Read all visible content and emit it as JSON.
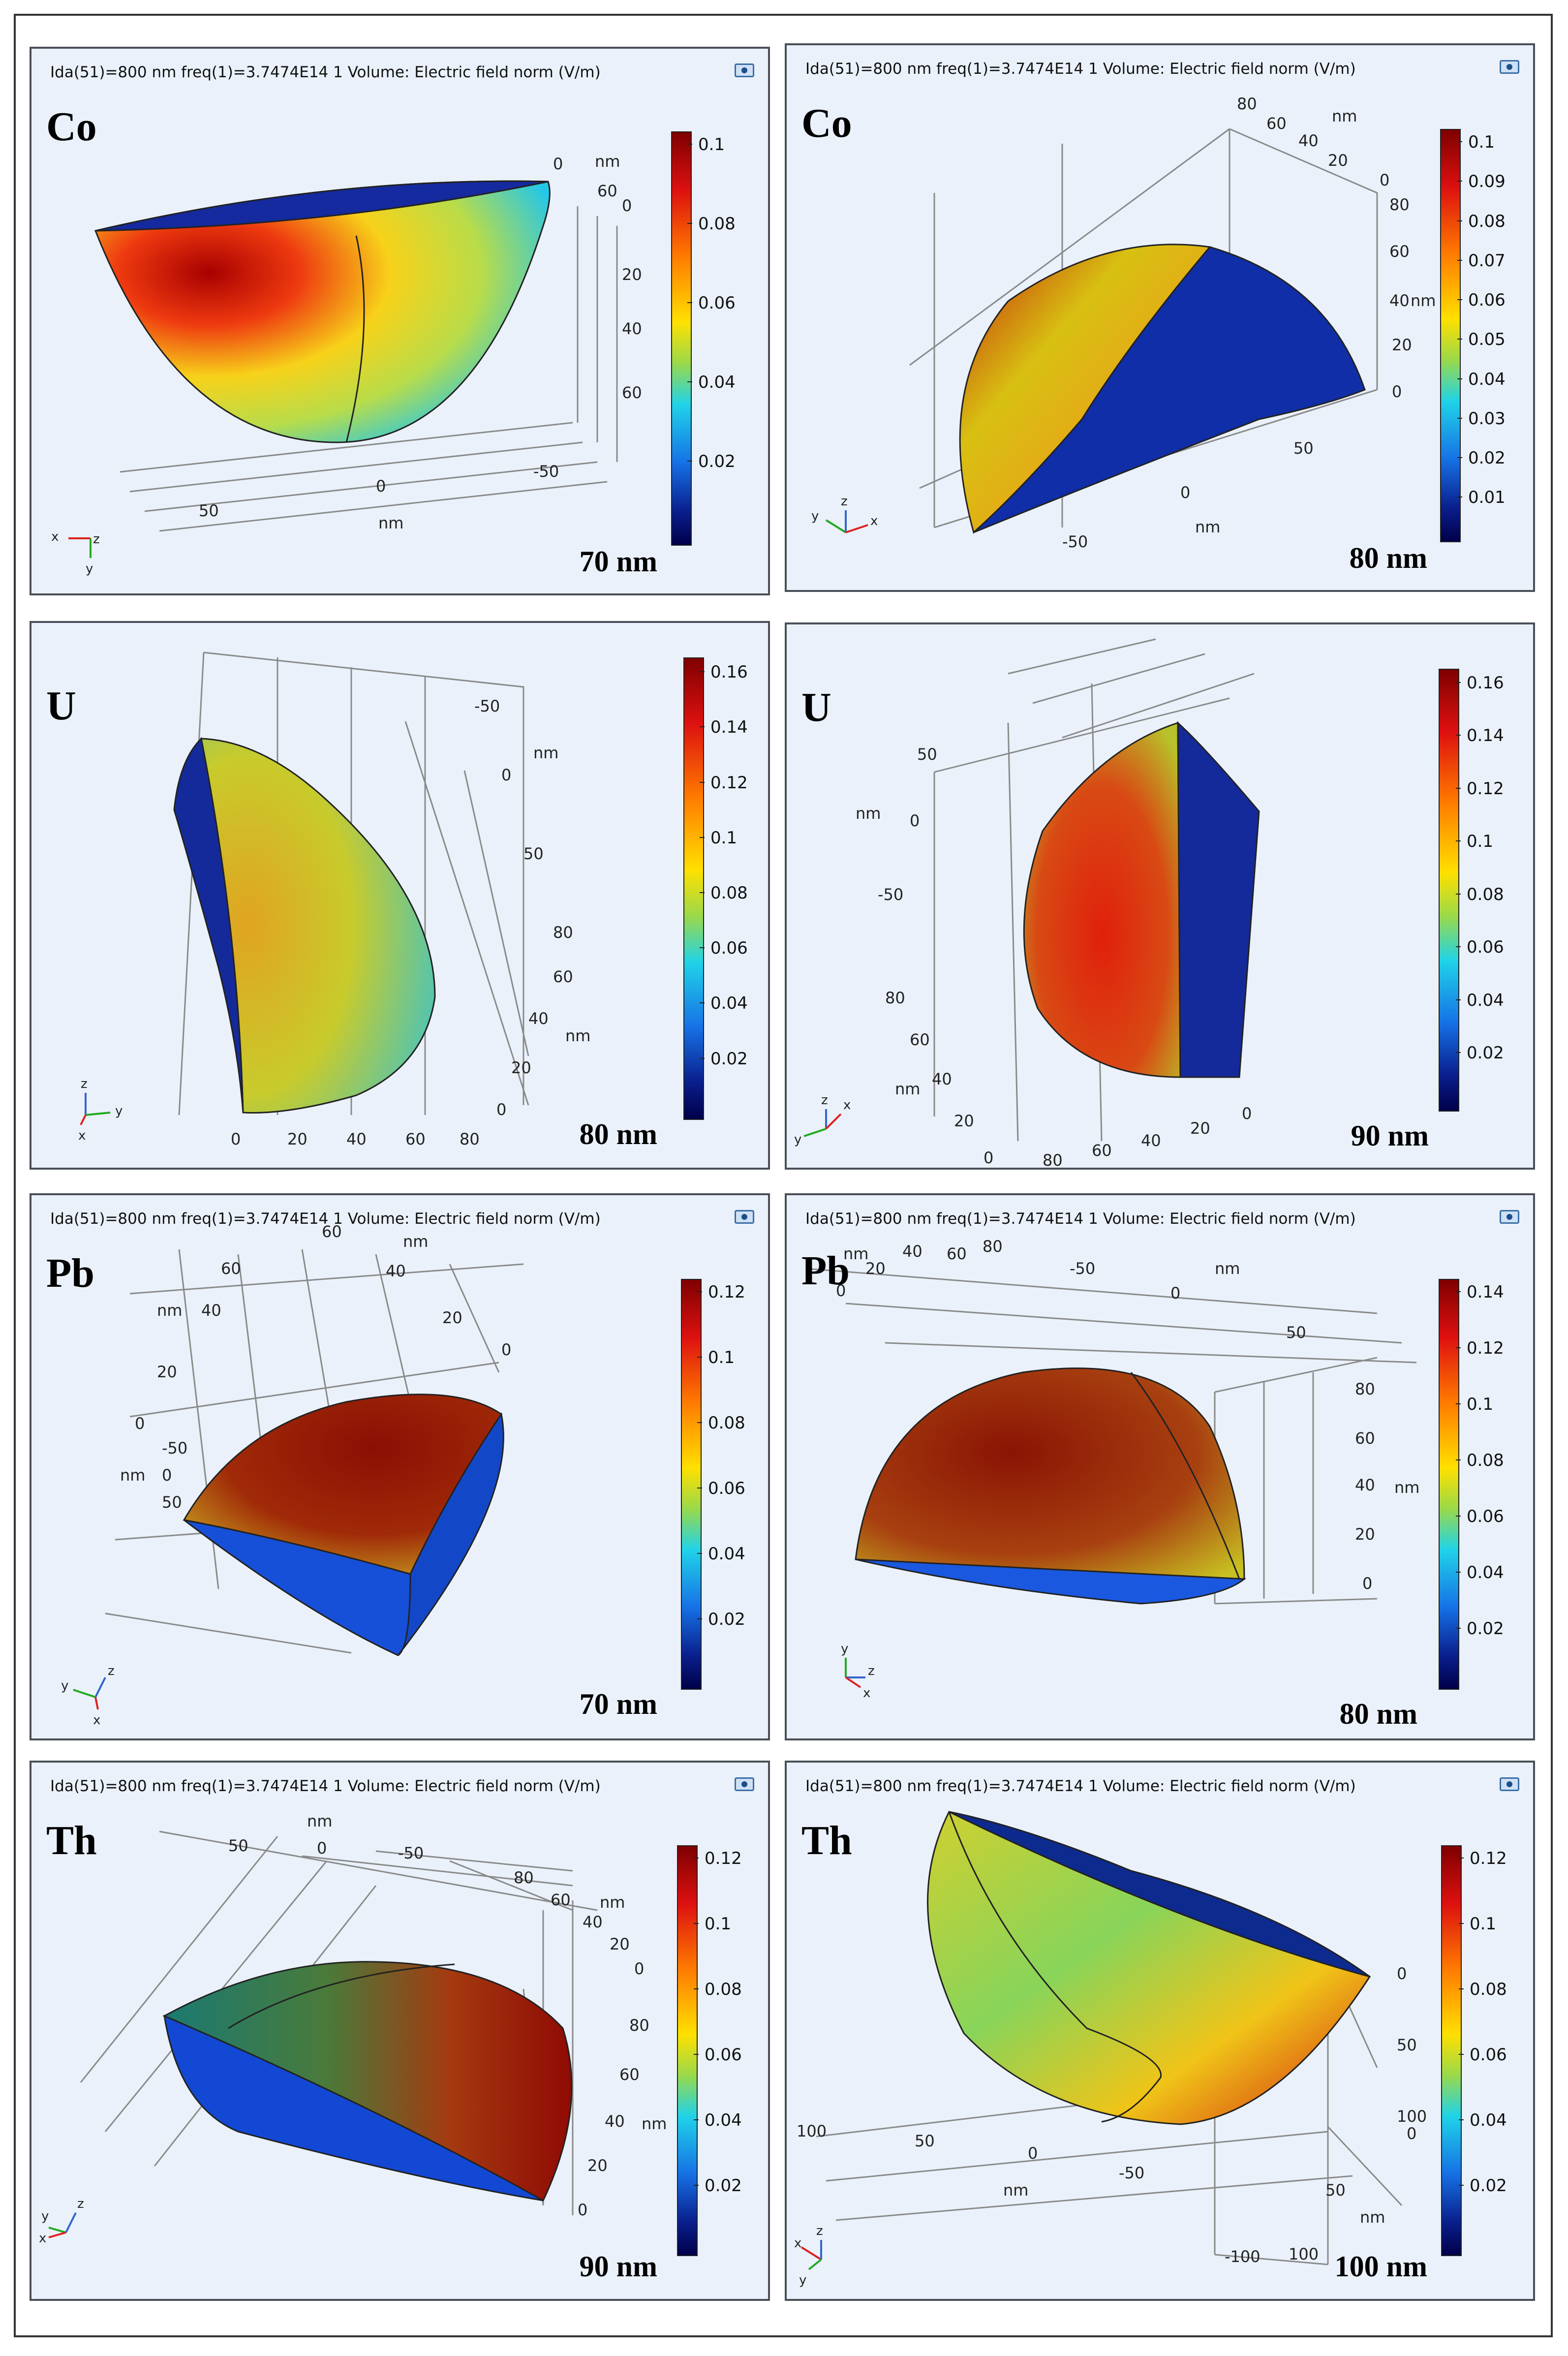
{
  "figure": {
    "header": "Ida(51)=800 nm freq(1)=3.7474E14 1   Volume: Electric field norm (V/m)",
    "panels": [
      {
        "material": "Co",
        "size": "70 nm",
        "has_header": true,
        "colorbar": [
          "0.1",
          "0.08",
          "0.06",
          "0.04",
          "0.02"
        ],
        "axis_labels": [
          "nm",
          "0",
          "60",
          "0",
          "20",
          "40",
          "60",
          "50",
          "0",
          "-50",
          "nm"
        ],
        "triad": [
          "x",
          "z",
          "y"
        ]
      },
      {
        "material": "Co",
        "size": "80 nm",
        "has_header": true,
        "colorbar": [
          "0.1",
          "0.09",
          "0.08",
          "0.07",
          "0.06",
          "0.05",
          "0.04",
          "0.03",
          "0.02",
          "0.01"
        ],
        "axis_labels": [
          "80",
          "60",
          "40",
          "20",
          "nm",
          "0",
          "80",
          "60",
          "40",
          "20",
          "0",
          "nm",
          "50",
          "0",
          "-50",
          "nm"
        ],
        "triad": [
          "y",
          "z",
          "x"
        ]
      },
      {
        "material": "U",
        "size": "80 nm",
        "has_header": false,
        "colorbar": [
          "0.16",
          "0.14",
          "0.12",
          "0.1",
          "0.08",
          "0.06",
          "0.04",
          "0.02"
        ],
        "axis_labels": [
          "-50",
          "nm",
          "0",
          "50",
          "80",
          "60",
          "40",
          "nm",
          "20",
          "0",
          "0",
          "20",
          "40",
          "60",
          "80"
        ],
        "triad": [
          "z",
          "y",
          "x"
        ]
      },
      {
        "material": "U",
        "size": "90 nm",
        "has_header": false,
        "colorbar": [
          "0.16",
          "0.14",
          "0.12",
          "0.1",
          "0.08",
          "0.06",
          "0.04",
          "0.02"
        ],
        "axis_labels": [
          "50",
          "nm",
          "0",
          "-50",
          "80",
          "60",
          "40",
          "nm",
          "20",
          "0",
          "80",
          "60",
          "40",
          "20",
          "0"
        ],
        "triad": [
          "z",
          "x",
          "y"
        ]
      },
      {
        "material": "Pb",
        "size": "70 nm",
        "has_header": true,
        "colorbar": [
          "0.12",
          "0.1",
          "0.08",
          "0.06",
          "0.04",
          "0.02"
        ],
        "axis_labels": [
          "60",
          "nm",
          "60",
          "40",
          "nm",
          "40",
          "20",
          "20",
          "0",
          "0",
          "-50",
          "nm",
          "0",
          "50"
        ],
        "triad": [
          "y",
          "z",
          "x"
        ]
      },
      {
        "material": "Pb",
        "size": "80 nm",
        "has_header": true,
        "colorbar": [
          "0.14",
          "0.12",
          "0.1",
          "0.08",
          "0.06",
          "0.04",
          "0.02"
        ],
        "axis_labels": [
          "nm",
          "40",
          "60",
          "80",
          "-50",
          "nm",
          "20",
          "0",
          "0",
          "50",
          "80",
          "60",
          "40",
          "nm",
          "20",
          "0"
        ],
        "triad": [
          "y",
          "z",
          "x"
        ]
      },
      {
        "material": "Th",
        "size": "90 nm",
        "has_header": true,
        "colorbar": [
          "0.12",
          "0.1",
          "0.08",
          "0.06",
          "0.04",
          "0.02"
        ],
        "axis_labels": [
          "nm",
          "50",
          "0",
          "-50",
          "80",
          "60",
          "nm",
          "40",
          "20",
          "0",
          "80",
          "60",
          "40",
          "nm",
          "20",
          "0"
        ],
        "triad": [
          "y",
          "z",
          "x"
        ]
      },
      {
        "material": "Th",
        "size": "100 nm",
        "has_header": true,
        "colorbar": [
          "0.12",
          "0.1",
          "0.08",
          "0.06",
          "0.04",
          "0.02"
        ],
        "axis_labels": [
          "0",
          "50",
          "100",
          "0",
          "50",
          "nm",
          "100",
          "100",
          "50",
          "0",
          "-50",
          "nm",
          "-100"
        ],
        "triad": [
          "x",
          "z",
          "y"
        ]
      }
    ]
  },
  "colors": {
    "panel_bg": "#eaf1fa",
    "frame": "#333333"
  }
}
